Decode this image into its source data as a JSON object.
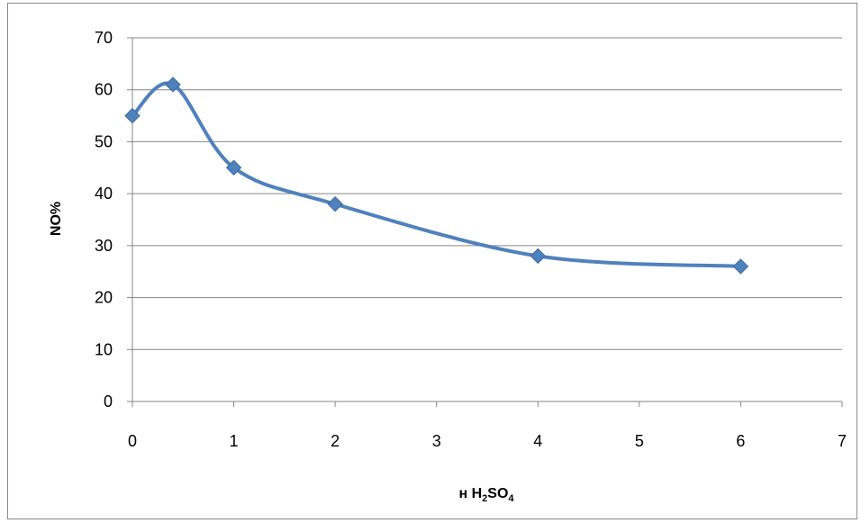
{
  "chart_data": {
    "type": "line",
    "title": "",
    "xlabel": "н H2SO4",
    "xlabel_parts": [
      {
        "text": "н H",
        "sub": false
      },
      {
        "text": "2",
        "sub": true
      },
      {
        "text": "SO",
        "sub": false
      },
      {
        "text": "4",
        "sub": true
      }
    ],
    "ylabel": "NO%",
    "xlim": [
      0,
      7
    ],
    "ylim": [
      0,
      70
    ],
    "x_ticks": [
      0,
      1,
      2,
      3,
      4,
      5,
      6,
      7
    ],
    "y_ticks": [
      0,
      10,
      20,
      30,
      40,
      50,
      60,
      70
    ],
    "grid": "horizontal",
    "smooth": true,
    "marker": "diamond",
    "series": [
      {
        "color": "#4F81BD",
        "x": [
          0,
          0.4,
          1,
          2,
          4,
          6
        ],
        "y": [
          55,
          61,
          45,
          38,
          28,
          26
        ]
      }
    ]
  }
}
